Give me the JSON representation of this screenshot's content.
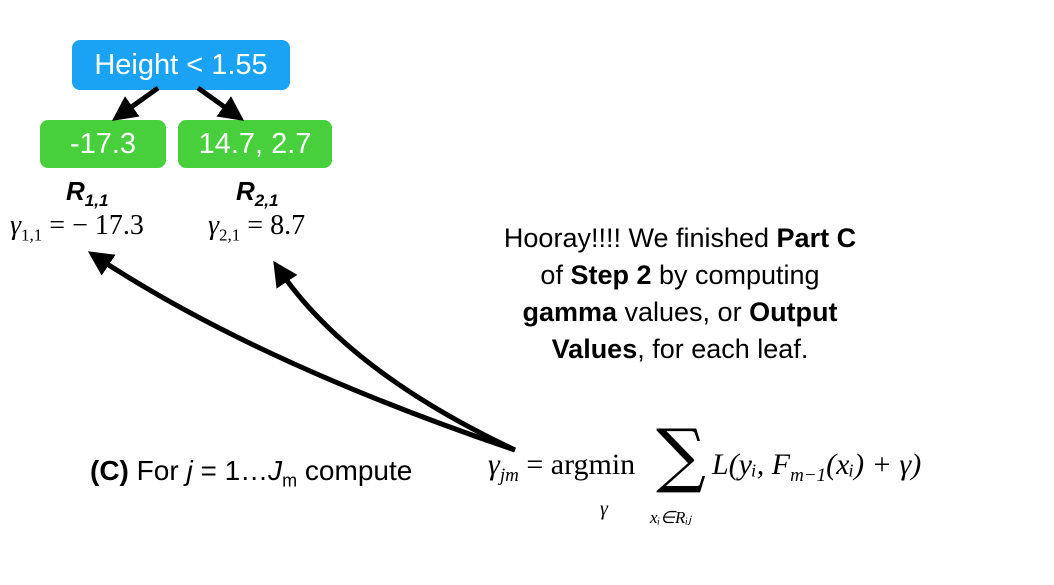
{
  "tree": {
    "root": "Height < 1.55",
    "left_leaf": "-17.3",
    "right_leaf": "14.7, 2.7"
  },
  "regions": [
    {
      "base": "R",
      "sub": "1,1"
    },
    {
      "base": "R",
      "sub": "2,1"
    }
  ],
  "gammas": [
    {
      "symbol": "γ",
      "sub": "1,1",
      "value": "= − 17.3"
    },
    {
      "symbol": "γ",
      "sub": "2,1",
      "value": "= 8.7"
    }
  ],
  "caption": {
    "t1": "Hooray!!!! We finished ",
    "b1": "Part C",
    "t2": "of ",
    "b2": "Step 2",
    "t3": " by computing",
    "b3": "gamma",
    "t4": " values, or ",
    "b4": "Output",
    "b5": "Values",
    "t5": ", for each leaf."
  },
  "step": {
    "label": "(C)",
    "text1": " For ",
    "var_j": "j",
    "text2": " = 1…",
    "var_J": "J",
    "sub_m": "m",
    "text3": " compute"
  },
  "formula": {
    "gamma": "γ",
    "gamma_sub": "jm",
    "eq": " = argmin",
    "under_argmin": "γ",
    "sum": "∑",
    "sum_under": "xᵢ∈Rᵢⱼ",
    "body": "L(yᵢ, F",
    "f_sub": "m−1",
    "body2": "(xᵢ) + γ)"
  }
}
